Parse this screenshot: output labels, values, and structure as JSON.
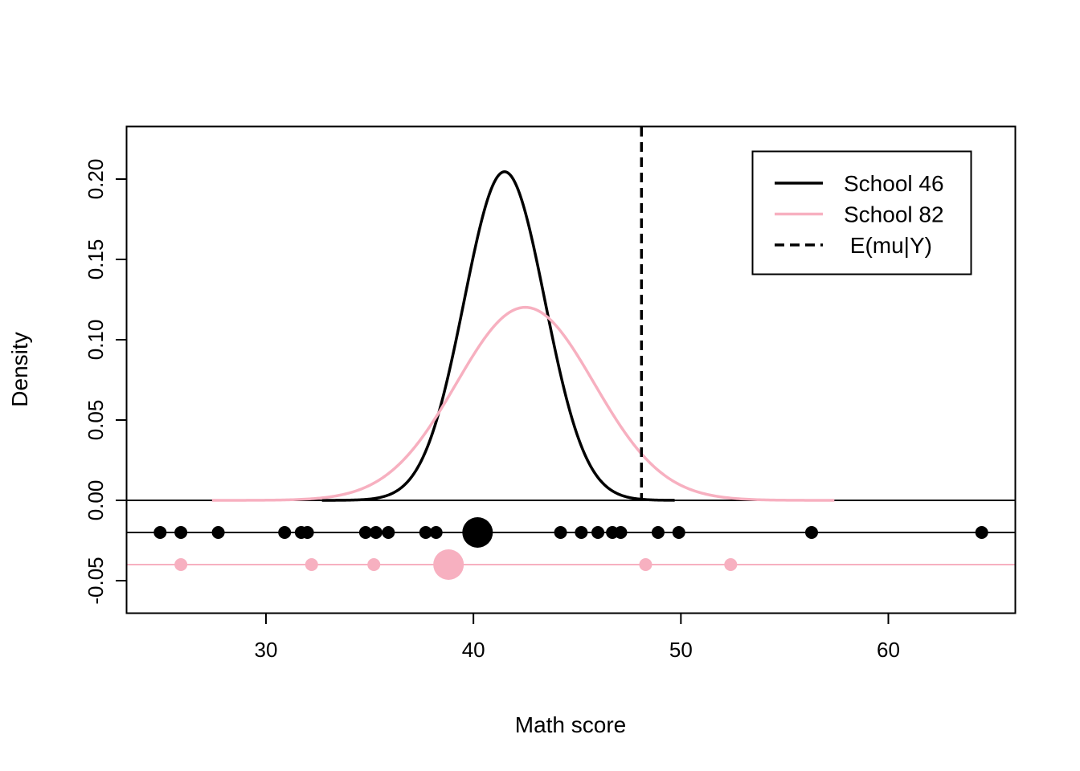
{
  "chart_data": {
    "type": "line",
    "title": "",
    "xlabel": "Math score",
    "ylabel": "Density",
    "xlim": [
      23.3,
      66.1
    ],
    "ylim": [
      -0.07,
      0.2325
    ],
    "xticks": [
      30,
      40,
      50,
      60
    ],
    "yticks": [
      -0.05,
      0.0,
      0.05,
      0.1,
      0.15,
      0.2
    ],
    "ytick_labels": [
      "-0.05",
      "0.00",
      "0.05",
      "0.10",
      "0.15",
      "0.20"
    ],
    "grid": false,
    "legend_position": "top-right",
    "legend": [
      {
        "label": "School 46",
        "color": "#000000",
        "style": "solid"
      },
      {
        "label": "School 82",
        "color": "#f7b0c0",
        "style": "solid"
      },
      {
        "label": " E(mu|Y)",
        "color": "#000000",
        "style": "dashed"
      }
    ],
    "series": [
      {
        "name": "School 46",
        "color": "#000000",
        "kind": "normal-density",
        "mean": 41.5,
        "sd": 1.95,
        "x_range": [
          32.7,
          49.7
        ],
        "obs_y": -0.02,
        "observations": [
          24.9,
          25.9,
          27.7,
          30.9,
          31.7,
          32.0,
          34.8,
          35.3,
          35.9,
          37.7,
          38.2,
          44.2,
          45.2,
          46.0,
          46.7,
          47.1,
          48.9,
          49.9,
          56.3,
          64.5
        ],
        "sample_mean": 40.2
      },
      {
        "name": "School 82",
        "color": "#f7b0c0",
        "kind": "normal-density",
        "mean": 42.5,
        "sd": 3.32,
        "x_range": [
          27.4,
          57.4
        ],
        "obs_y": -0.04,
        "observations": [
          25.9,
          32.2,
          35.2,
          48.3,
          52.4
        ],
        "sample_mean": 38.8
      }
    ],
    "reference_lines": {
      "vertical_dashed_x": 48.1,
      "horizontal_y": [
        0.0,
        -0.02,
        -0.04
      ]
    }
  }
}
